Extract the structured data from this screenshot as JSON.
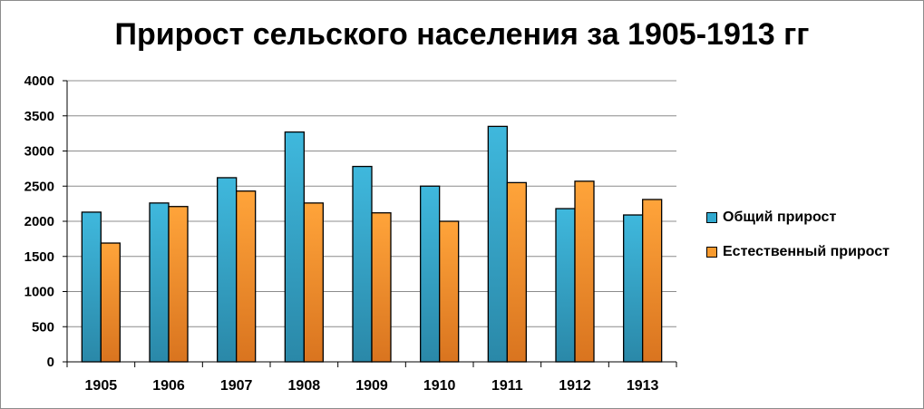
{
  "chart_data": {
    "type": "bar",
    "title": "Прирост сельского населения за 1905-1913 гг",
    "categories": [
      "1905",
      "1906",
      "1907",
      "1908",
      "1909",
      "1910",
      "1911",
      "1912",
      "1913"
    ],
    "series": [
      {
        "name": "Общий прирост",
        "color": "#31a9cf",
        "values": [
          2130,
          2260,
          2620,
          3270,
          2780,
          2500,
          3350,
          2180,
          2090
        ]
      },
      {
        "name": "Естественный прирост",
        "color": "#f79a2e",
        "values": [
          1690,
          2210,
          2430,
          2260,
          2120,
          2000,
          2550,
          2570,
          2310
        ]
      }
    ],
    "yticks": [
      "0",
      "500",
      "1000",
      "1500",
      "2000",
      "2500",
      "3000",
      "3500",
      "4000"
    ],
    "ylim": [
      0,
      4000
    ],
    "grid": true,
    "legend_position": "right"
  }
}
